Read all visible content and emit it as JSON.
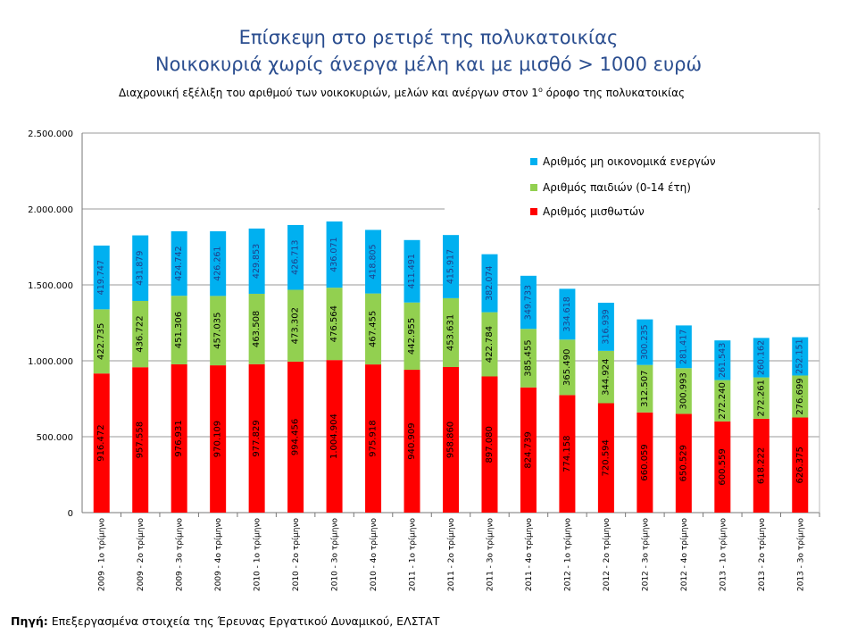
{
  "title_line1": "Επίσκεψη στο ρετιρέ της πολυκατοικίας",
  "title_line2": "Νοικοκυριά χωρίς άνεργα μέλη και με μισθό > 1000 ευρώ",
  "subtitle": "Διαχρονική εξέλιξη του αριθμού των νοικοκυριών, μελών και ανέργων στον 1ο όροφο της πολυκατοικίας",
  "source": "Πηγή: Επεξεργασμένα στοιχεία της Έρευνας Εργατικού Δυναμικού, ΕΛΣΤΑΤ",
  "colors": {
    "employees": "#ff0000",
    "children": "#92d050",
    "inactive": "#00b0f0"
  },
  "chart_data": {
    "type": "bar",
    "stacked": true,
    "categories": [
      "2009 - 1ο τρίμηνο",
      "2009 - 2ο τρίμηνο",
      "2009 - 3ο τρίμηνο",
      "2009 - 4ο τρίμηνο",
      "2010 - 1ο τρίμηνο",
      "2010 - 2ο τρίμηνο",
      "2010 - 3ο τρίμηνο",
      "2010 - 4ο τρίμηνο",
      "2011 - 1ο τρίμηνο",
      "2011 - 2ο τρίμηνο",
      "2011 - 3ο τρίμηνο",
      "2011 - 4ο τρίμηνο",
      "2012 - 1ο τρίμηνο",
      "2012 - 2ο τρίμηνο",
      "2012 - 3ο τρίμηνο",
      "2012 - 4ο τρίμηνο",
      "2013 - 1ο τρίμηνο",
      "2013 - 2ο τρίμηνο",
      "2013 - 3ο τρίμηνο"
    ],
    "series": [
      {
        "name": "Αριθμός μισθωτών",
        "key": "employees",
        "values": [
          916472,
          957558,
          976931,
          970109,
          977829,
          994456,
          1004904,
          975918,
          940909,
          958860,
          897080,
          824739,
          774158,
          720594,
          660059,
          650529,
          600559,
          618222,
          626375
        ],
        "labels": [
          "916.472",
          "957.558",
          "976.931",
          "970.109",
          "977.829",
          "994.456",
          "1.004.904",
          "975.918",
          "940.909",
          "958.860",
          "897.080",
          "824.739",
          "774.158",
          "720.594",
          "660.059",
          "650.529",
          "600.559",
          "618.222",
          "626.375"
        ]
      },
      {
        "name": "Αριθμός παιδιών (0-14 έτη)",
        "key": "children",
        "values": [
          422735,
          436722,
          451306,
          457035,
          463508,
          473302,
          476564,
          467455,
          442955,
          453631,
          422784,
          385455,
          365490,
          344924,
          312507,
          300993,
          272240,
          272261,
          276699
        ],
        "labels": [
          "422.735",
          "436.722",
          "451.306",
          "457.035",
          "463.508",
          "473.302",
          "476.564",
          "467.455",
          "442.955",
          "453.631",
          "422.784",
          "385.455",
          "365.490",
          "344.924",
          "312.507",
          "300.993",
          "272.240",
          "272.261",
          "276.699"
        ]
      },
      {
        "name": "Αριθμός μη οικονομικά ενεργών",
        "key": "inactive",
        "values": [
          419747,
          431879,
          424742,
          426261,
          429853,
          426713,
          436071,
          418805,
          411491,
          415917,
          382074,
          349733,
          334618,
          316939,
          300235,
          281417,
          261543,
          260162,
          252151
        ],
        "labels": [
          "419.747",
          "431.879",
          "424.742",
          "426.261",
          "429.853",
          "426.713",
          "436.071",
          "418.805",
          "411.491",
          "415.917",
          "382.074",
          "349.733",
          "334.618",
          "316.939",
          "300.235",
          "281.417",
          "261.543",
          "260.162",
          "252.151"
        ]
      }
    ],
    "legend_order": [
      "inactive",
      "children",
      "employees"
    ],
    "legend_position": "top-right",
    "ylim": [
      0,
      2500000
    ],
    "yticks": [
      0,
      500000,
      1000000,
      1500000,
      2000000,
      2500000
    ],
    "ytick_labels": [
      "0",
      "500.000",
      "1.000.000",
      "1.500.000",
      "2.000.000",
      "2.500.000"
    ],
    "grid": true
  }
}
